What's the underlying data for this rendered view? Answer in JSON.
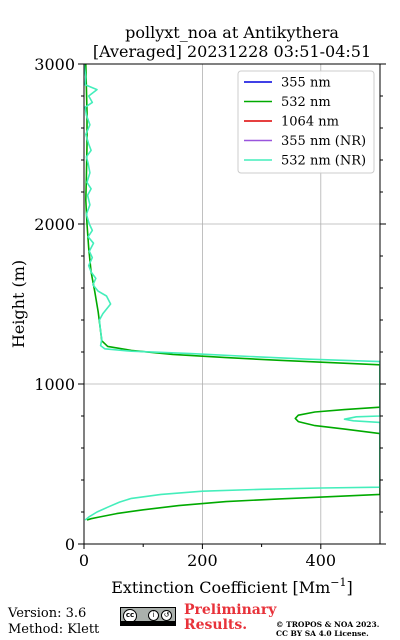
{
  "chart_data": {
    "type": "line",
    "title": [
      "pollyxt_noa at Antikythera",
      "[Averaged] 20231228 03:51-04:51"
    ],
    "xlabel": "Extinction Coefficient [Mm",
    "xlabel_superscript": "−1",
    "xlabel_close": "]",
    "ylabel": "Height (m)",
    "xlim": [
      0,
      500
    ],
    "ylim": [
      0,
      3000
    ],
    "xticks": [
      0,
      200,
      400
    ],
    "xtick_labels": [
      "0",
      "200",
      "400"
    ],
    "yticks": [
      0,
      1000,
      2000,
      3000
    ],
    "ytick_labels": [
      "0",
      "1000",
      "2000",
      "3000"
    ],
    "grid": true,
    "legend_position": "top-right",
    "series": [
      {
        "name": "355 nm",
        "color": "#0000dd",
        "points": []
      },
      {
        "name": "532 nm",
        "color": "#00aa00",
        "points": [
          [
            3,
            3000
          ],
          [
            4,
            2850
          ],
          [
            5,
            2700
          ],
          [
            5,
            2500
          ],
          [
            4,
            2300
          ],
          [
            3,
            2150
          ],
          [
            5,
            2000
          ],
          [
            8,
            1850
          ],
          [
            12,
            1700
          ],
          [
            18,
            1580
          ],
          [
            24,
            1450
          ],
          [
            28,
            1330
          ],
          [
            30,
            1270
          ],
          [
            40,
            1235
          ],
          [
            80,
            1210
          ],
          [
            150,
            1185
          ],
          [
            240,
            1165
          ],
          [
            330,
            1148
          ],
          [
            420,
            1133
          ],
          [
            500,
            1120
          ],
          [
            500,
            855
          ],
          [
            440,
            840
          ],
          [
            390,
            825
          ],
          [
            362,
            805
          ],
          [
            357,
            785
          ],
          [
            362,
            765
          ],
          [
            390,
            740
          ],
          [
            440,
            718
          ],
          [
            500,
            690
          ],
          [
            500,
            310
          ],
          [
            420,
            296
          ],
          [
            330,
            282
          ],
          [
            240,
            265
          ],
          [
            160,
            240
          ],
          [
            100,
            214
          ],
          [
            55,
            190
          ],
          [
            25,
            168
          ],
          [
            12,
            158
          ],
          [
            5,
            150
          ]
        ]
      },
      {
        "name": "1064 nm",
        "color": "#dd0000",
        "points": []
      },
      {
        "name": "355 nm (NR)",
        "color": "#9955dd",
        "points": []
      },
      {
        "name": "532 nm (NR)",
        "color": "#44eebb",
        "points": [
          [
            0,
            3000
          ],
          [
            3,
            2920
          ],
          [
            2,
            2870
          ],
          [
            22,
            2840
          ],
          [
            8,
            2800
          ],
          [
            14,
            2760
          ],
          [
            2,
            2730
          ],
          [
            4,
            2680
          ],
          [
            10,
            2620
          ],
          [
            3,
            2560
          ],
          [
            8,
            2500
          ],
          [
            12,
            2460
          ],
          [
            4,
            2420
          ],
          [
            7,
            2380
          ],
          [
            10,
            2320
          ],
          [
            5,
            2260
          ],
          [
            12,
            2220
          ],
          [
            6,
            2180
          ],
          [
            10,
            2120
          ],
          [
            4,
            2060
          ],
          [
            9,
            2000
          ],
          [
            14,
            1960
          ],
          [
            7,
            1920
          ],
          [
            16,
            1880
          ],
          [
            9,
            1830
          ],
          [
            14,
            1790
          ],
          [
            8,
            1740
          ],
          [
            12,
            1700
          ],
          [
            20,
            1660
          ],
          [
            15,
            1620
          ],
          [
            24,
            1580
          ],
          [
            38,
            1550
          ],
          [
            45,
            1500
          ],
          [
            32,
            1440
          ],
          [
            26,
            1400
          ],
          [
            28,
            1330
          ],
          [
            30,
            1280
          ],
          [
            28,
            1240
          ],
          [
            35,
            1220
          ],
          [
            80,
            1205
          ],
          [
            180,
            1190
          ],
          [
            280,
            1172
          ],
          [
            380,
            1155
          ],
          [
            500,
            1140
          ],
          [
            500,
            800
          ],
          [
            460,
            795
          ],
          [
            440,
            780
          ],
          [
            455,
            770
          ],
          [
            500,
            760
          ],
          [
            500,
            355
          ],
          [
            400,
            350
          ],
          [
            300,
            342
          ],
          [
            200,
            330
          ],
          [
            130,
            310
          ],
          [
            80,
            285
          ],
          [
            60,
            262
          ],
          [
            40,
            230
          ],
          [
            22,
            200
          ],
          [
            8,
            168
          ],
          [
            2,
            150
          ]
        ]
      }
    ]
  },
  "footer": {
    "version": "Version: 3.6",
    "method": "Method: Klett",
    "preliminary_line1": "Preliminary",
    "preliminary_line2": "Results.",
    "copyright_line1": "© TROPOS & NOA 2023.",
    "copyright_line2": "CC BY SA 4.0 License."
  }
}
